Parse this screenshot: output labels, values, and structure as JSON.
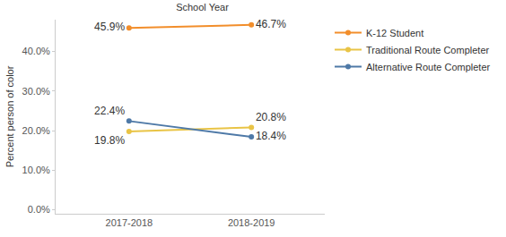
{
  "chart_data": {
    "type": "line",
    "title": "School Year",
    "y_label": "Percent person of color",
    "categories": [
      "2017-2018",
      "2018-2019"
    ],
    "series": [
      {
        "name": "K-12 Student",
        "color": "#f28e2b",
        "values": [
          45.9,
          46.7
        ],
        "value_labels": [
          "45.9%",
          "46.7%"
        ]
      },
      {
        "name": "Traditional Route Completer",
        "color": "#e9c446",
        "values": [
          19.8,
          20.8
        ],
        "value_labels": [
          "19.8%",
          "20.8%"
        ]
      },
      {
        "name": "Alternative Route Completer",
        "color": "#4e79a7",
        "values": [
          22.4,
          18.4
        ],
        "value_labels": [
          "22.4%",
          "18.4%"
        ]
      }
    ],
    "ylim": [
      -1,
      48
    ],
    "yticks": [
      {
        "value": 0,
        "label": "0.0%"
      },
      {
        "value": 10,
        "label": "10.0%"
      },
      {
        "value": 20,
        "label": "20.0%"
      },
      {
        "value": 30,
        "label": "30.0%"
      },
      {
        "value": 40,
        "label": "40.0%"
      }
    ],
    "grid": false,
    "legend": "top right",
    "data_labels": true,
    "marker": "circle"
  }
}
